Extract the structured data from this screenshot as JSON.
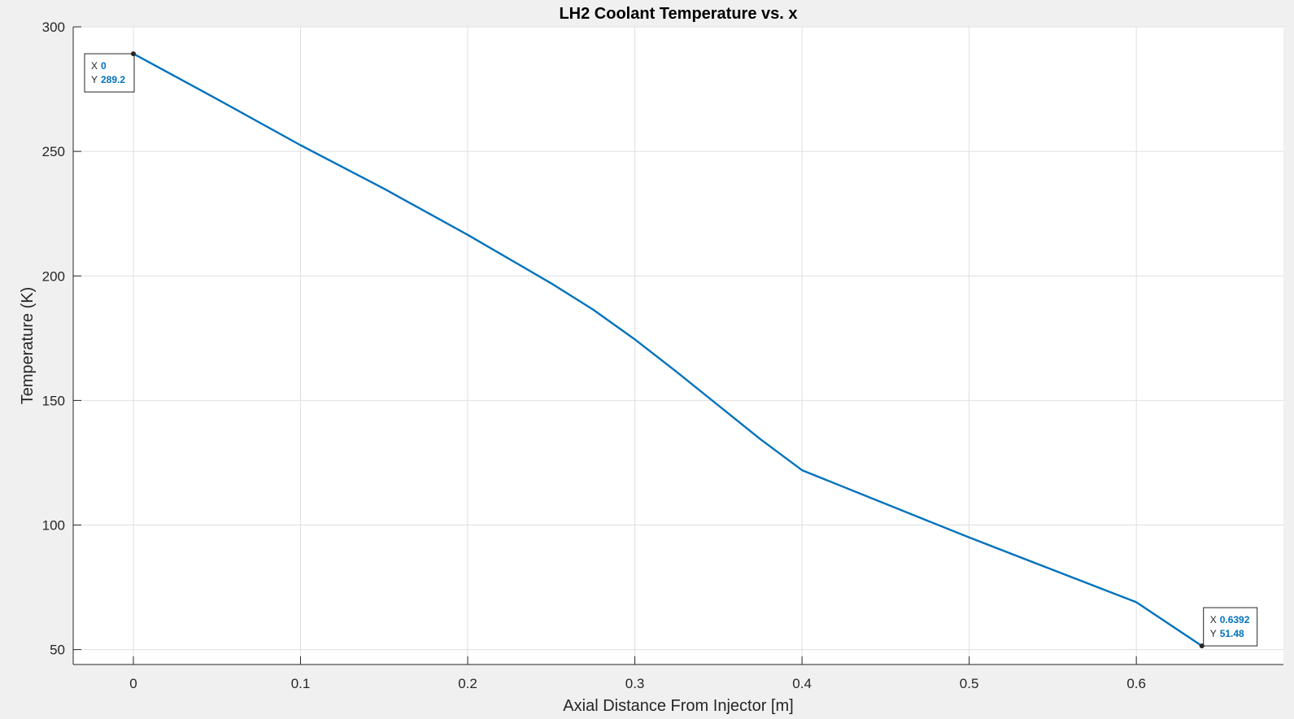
{
  "chart_data": {
    "type": "line",
    "title": "LH2 Coolant Temperature vs. x",
    "xlabel": "Axial Distance From Injector [m]",
    "ylabel": "Temperature (K)",
    "xlim": [
      -0.036,
      0.688
    ],
    "ylim": [
      44,
      300
    ],
    "xticks": [
      0,
      0.1,
      0.2,
      0.3,
      0.4,
      0.5,
      0.6
    ],
    "xtick_labels": [
      "0",
      "0.1",
      "0.2",
      "0.3",
      "0.4",
      "0.5",
      "0.6"
    ],
    "yticks": [
      50,
      100,
      150,
      200,
      250,
      300
    ],
    "ytick_labels": [
      "50",
      "100",
      "150",
      "200",
      "250",
      "300"
    ],
    "grid": true,
    "line_color": "#0072bd",
    "series": [
      {
        "x": [
          0,
          0.05,
          0.1,
          0.15,
          0.2,
          0.25,
          0.275,
          0.3,
          0.325,
          0.35,
          0.375,
          0.4,
          0.45,
          0.5,
          0.55,
          0.6,
          0.6392
        ],
        "y": [
          289.2,
          271,
          252.5,
          235,
          216.5,
          197,
          186.5,
          174.5,
          161.5,
          148,
          134.5,
          122,
          108.5,
          95,
          82,
          69,
          51.48
        ]
      }
    ],
    "datatips": [
      {
        "x_key": "X",
        "x_value": "0",
        "y_key": "Y",
        "y_value": "289.2",
        "point": [
          0,
          289.2
        ],
        "placement": "below-left"
      },
      {
        "x_key": "X",
        "x_value": "0.6392",
        "y_key": "Y",
        "y_value": "51.48",
        "point": [
          0.6392,
          51.48
        ],
        "placement": "above-right"
      }
    ]
  }
}
